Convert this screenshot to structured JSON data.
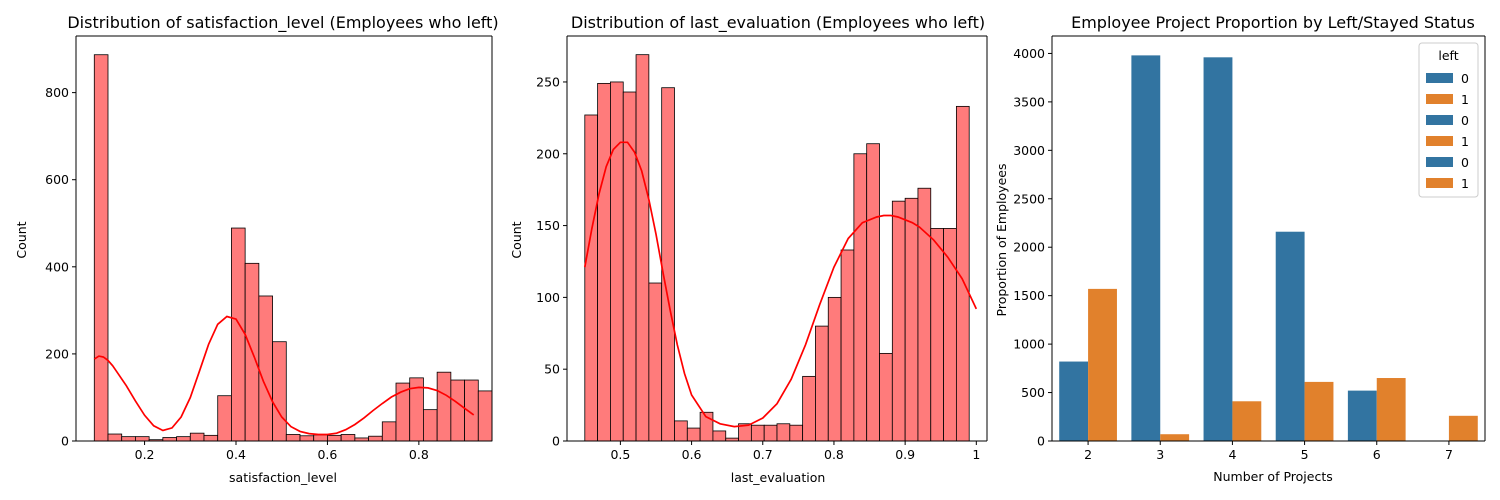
{
  "chart_data": [
    {
      "type": "histogram",
      "title": "Distribution of satisfaction_level (Employees who left)",
      "xlabel": "satisfaction_level",
      "ylabel": "Count",
      "xlim": [
        0.05,
        0.96
      ],
      "ylim": [
        0,
        930
      ],
      "xticks": [
        0.2,
        0.4,
        0.6,
        0.8
      ],
      "yticks": [
        0,
        200,
        400,
        600,
        800
      ],
      "bar_color": "#ff7b7b",
      "kde_color": "#ff0000",
      "bins": [
        {
          "x0": 0.09,
          "x1": 0.12,
          "count": 887
        },
        {
          "x0": 0.12,
          "x1": 0.15,
          "count": 16
        },
        {
          "x0": 0.15,
          "x1": 0.18,
          "count": 10
        },
        {
          "x0": 0.18,
          "x1": 0.21,
          "count": 10
        },
        {
          "x0": 0.21,
          "x1": 0.24,
          "count": 3
        },
        {
          "x0": 0.24,
          "x1": 0.27,
          "count": 8
        },
        {
          "x0": 0.27,
          "x1": 0.3,
          "count": 10
        },
        {
          "x0": 0.3,
          "x1": 0.33,
          "count": 18
        },
        {
          "x0": 0.33,
          "x1": 0.36,
          "count": 13
        },
        {
          "x0": 0.36,
          "x1": 0.39,
          "count": 104
        },
        {
          "x0": 0.39,
          "x1": 0.42,
          "count": 489
        },
        {
          "x0": 0.42,
          "x1": 0.45,
          "count": 408
        },
        {
          "x0": 0.45,
          "x1": 0.48,
          "count": 333
        },
        {
          "x0": 0.48,
          "x1": 0.51,
          "count": 228
        },
        {
          "x0": 0.51,
          "x1": 0.54,
          "count": 15
        },
        {
          "x0": 0.54,
          "x1": 0.57,
          "count": 12
        },
        {
          "x0": 0.57,
          "x1": 0.6,
          "count": 14
        },
        {
          "x0": 0.6,
          "x1": 0.63,
          "count": 13
        },
        {
          "x0": 0.63,
          "x1": 0.66,
          "count": 15
        },
        {
          "x0": 0.66,
          "x1": 0.69,
          "count": 7
        },
        {
          "x0": 0.69,
          "x1": 0.72,
          "count": 11
        },
        {
          "x0": 0.72,
          "x1": 0.75,
          "count": 44
        },
        {
          "x0": 0.75,
          "x1": 0.78,
          "count": 133
        },
        {
          "x0": 0.78,
          "x1": 0.81,
          "count": 145
        },
        {
          "x0": 0.81,
          "x1": 0.84,
          "count": 72
        },
        {
          "x0": 0.84,
          "x1": 0.87,
          "count": 158
        },
        {
          "x0": 0.87,
          "x1": 0.9,
          "count": 140
        },
        {
          "x0": 0.9,
          "x1": 0.93,
          "count": 140
        },
        {
          "x0": 0.93,
          "x1": 0.96,
          "count": 115
        }
      ],
      "kde": {
        "x": [
          0.09,
          0.1,
          0.11,
          0.12,
          0.13,
          0.14,
          0.16,
          0.18,
          0.2,
          0.22,
          0.24,
          0.26,
          0.28,
          0.3,
          0.32,
          0.34,
          0.36,
          0.38,
          0.4,
          0.42,
          0.44,
          0.46,
          0.48,
          0.5,
          0.52,
          0.54,
          0.56,
          0.58,
          0.6,
          0.62,
          0.64,
          0.66,
          0.68,
          0.7,
          0.72,
          0.74,
          0.76,
          0.78,
          0.8,
          0.82,
          0.84,
          0.86,
          0.88,
          0.9,
          0.92
        ],
        "y": [
          188,
          195,
          193,
          185,
          173,
          158,
          127,
          92,
          59,
          35,
          24,
          30,
          55,
          100,
          160,
          222,
          268,
          286,
          280,
          245,
          193,
          137,
          90,
          55,
          33,
          22,
          17,
          15,
          15,
          18,
          26,
          38,
          53,
          70,
          86,
          101,
          112,
          120,
          123,
          122,
          116,
          105,
          91,
          75,
          60
        ]
      }
    },
    {
      "type": "histogram",
      "title": "Distribution of last_evaluation (Employees who left)",
      "xlabel": "last_evaluation",
      "ylabel": "Count",
      "xlim": [
        0.425,
        1.015
      ],
      "ylim": [
        0,
        282
      ],
      "xticks": [
        0.5,
        0.6,
        0.7,
        0.8,
        0.9,
        1.0
      ],
      "yticks": [
        0,
        50,
        100,
        150,
        200,
        250
      ],
      "bar_color": "#ff7b7b",
      "kde_color": "#ff0000",
      "bins": [
        {
          "x0": 0.45,
          "x1": 0.468,
          "count": 227
        },
        {
          "x0": 0.468,
          "x1": 0.486,
          "count": 249
        },
        {
          "x0": 0.486,
          "x1": 0.504,
          "count": 250
        },
        {
          "x0": 0.504,
          "x1": 0.522,
          "count": 243
        },
        {
          "x0": 0.522,
          "x1": 0.54,
          "count": 269
        },
        {
          "x0": 0.54,
          "x1": 0.558,
          "count": 110
        },
        {
          "x0": 0.558,
          "x1": 0.576,
          "count": 246
        },
        {
          "x0": 0.576,
          "x1": 0.594,
          "count": 14
        },
        {
          "x0": 0.594,
          "x1": 0.612,
          "count": 9
        },
        {
          "x0": 0.612,
          "x1": 0.63,
          "count": 20
        },
        {
          "x0": 0.63,
          "x1": 0.648,
          "count": 7
        },
        {
          "x0": 0.648,
          "x1": 0.666,
          "count": 2
        },
        {
          "x0": 0.666,
          "x1": 0.684,
          "count": 12
        },
        {
          "x0": 0.684,
          "x1": 0.702,
          "count": 11
        },
        {
          "x0": 0.702,
          "x1": 0.72,
          "count": 11
        },
        {
          "x0": 0.72,
          "x1": 0.738,
          "count": 12
        },
        {
          "x0": 0.738,
          "x1": 0.756,
          "count": 11
        },
        {
          "x0": 0.756,
          "x1": 0.774,
          "count": 45
        },
        {
          "x0": 0.774,
          "x1": 0.792,
          "count": 80
        },
        {
          "x0": 0.792,
          "x1": 0.81,
          "count": 100
        },
        {
          "x0": 0.81,
          "x1": 0.828,
          "count": 133
        },
        {
          "x0": 0.828,
          "x1": 0.846,
          "count": 200
        },
        {
          "x0": 0.846,
          "x1": 0.864,
          "count": 207
        },
        {
          "x0": 0.864,
          "x1": 0.882,
          "count": 61
        },
        {
          "x0": 0.882,
          "x1": 0.9,
          "count": 167
        },
        {
          "x0": 0.9,
          "x1": 0.918,
          "count": 169
        },
        {
          "x0": 0.918,
          "x1": 0.936,
          "count": 176
        },
        {
          "x0": 0.936,
          "x1": 0.954,
          "count": 148
        },
        {
          "x0": 0.954,
          "x1": 0.972,
          "count": 148
        },
        {
          "x0": 0.972,
          "x1": 0.99,
          "count": 233
        }
      ],
      "kde": {
        "x": [
          0.45,
          0.46,
          0.47,
          0.48,
          0.49,
          0.5,
          0.51,
          0.52,
          0.53,
          0.54,
          0.55,
          0.56,
          0.57,
          0.58,
          0.59,
          0.6,
          0.62,
          0.64,
          0.66,
          0.68,
          0.7,
          0.72,
          0.74,
          0.76,
          0.78,
          0.8,
          0.82,
          0.84,
          0.86,
          0.87,
          0.88,
          0.89,
          0.9,
          0.91,
          0.92,
          0.94,
          0.96,
          0.98,
          1.0
        ],
        "y": [
          121,
          148,
          172,
          191,
          203,
          208,
          208,
          201,
          188,
          168,
          144,
          117,
          91,
          67,
          47,
          32,
          17,
          12,
          10,
          11,
          16,
          26,
          43,
          67,
          95,
          121,
          141,
          152,
          156,
          157,
          157,
          156,
          154,
          152,
          149,
          140,
          128,
          113,
          92
        ]
      }
    },
    {
      "type": "bar",
      "title": "Employee Project Proportion by Left/Stayed Status",
      "xlabel": "Number of Projects",
      "ylabel": "Proportion of Employees",
      "categories": [
        "2",
        "3",
        "4",
        "5",
        "6",
        "7"
      ],
      "ylim": [
        0,
        4180
      ],
      "yticks": [
        0,
        500,
        1000,
        1500,
        2000,
        2500,
        3000,
        3500,
        4000
      ],
      "series": [
        {
          "name": "0",
          "color": "#3274a1",
          "values": [
            820,
            3980,
            3960,
            2160,
            520,
            0
          ]
        },
        {
          "name": "1",
          "color": "#e1812c",
          "values": [
            1570,
            70,
            410,
            610,
            650,
            260
          ]
        }
      ],
      "legend": {
        "title": "left",
        "placement": "top-right",
        "entries": [
          {
            "label": "0",
            "color": "#3274a1"
          },
          {
            "label": "1",
            "color": "#e1812c"
          },
          {
            "label": "0",
            "color": "#3274a1"
          },
          {
            "label": "1",
            "color": "#e1812c"
          },
          {
            "label": "0",
            "color": "#3274a1"
          },
          {
            "label": "1",
            "color": "#e1812c"
          }
        ]
      }
    }
  ]
}
